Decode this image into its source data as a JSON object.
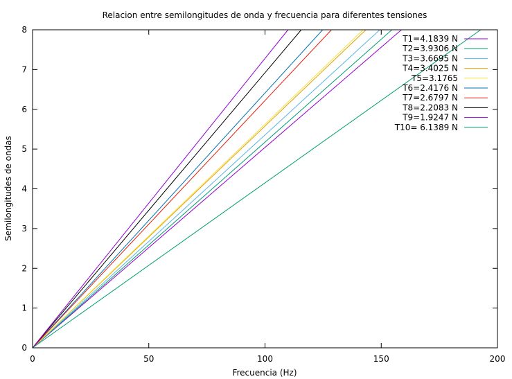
{
  "chart_data": {
    "type": "line",
    "title": "Relacion entre semilongitudes de onda y frecuencia para diferentes tensiones",
    "xlabel": "Frecuencia (Hz)",
    "ylabel": "Semilongitudes de ondas",
    "xlim": [
      0,
      200
    ],
    "ylim": [
      0,
      8
    ],
    "xticks": [
      0,
      50,
      100,
      150,
      200
    ],
    "yticks": [
      0,
      1,
      2,
      3,
      4,
      5,
      6,
      7,
      8
    ],
    "grid": false,
    "legend_position": "top-right",
    "series": [
      {
        "name": "T1=4.1839 N",
        "color": "#9400d3",
        "x": [
          0,
          158.7
        ],
        "y": [
          0,
          8
        ]
      },
      {
        "name": "T2=3.9306 N",
        "color": "#009e73",
        "x": [
          0,
          154.6
        ],
        "y": [
          0,
          8
        ]
      },
      {
        "name": "T3=3.6695 N",
        "color": "#56b4e9",
        "x": [
          0,
          149.4
        ],
        "y": [
          0,
          8
        ]
      },
      {
        "name": "T4=3.4025 N",
        "color": "#e69f00",
        "x": [
          0,
          143.4
        ],
        "y": [
          0,
          8
        ]
      },
      {
        "name": "T5=3.1765",
        "color": "#f0e442",
        "x": [
          0,
          142.2
        ],
        "y": [
          0,
          8
        ]
      },
      {
        "name": "T6=2.4176 N",
        "color": "#0072b2",
        "x": [
          0,
          124.8
        ],
        "y": [
          0,
          8
        ]
      },
      {
        "name": "T7=2.6797 N",
        "color": "#e51e10",
        "x": [
          0,
          128.6
        ],
        "y": [
          0,
          8
        ]
      },
      {
        "name": "T8=2.2083 N",
        "color": "#000000",
        "x": [
          0,
          115.6
        ],
        "y": [
          0,
          8
        ]
      },
      {
        "name": "T9=1.9247 N",
        "color": "#9400d3",
        "x": [
          0,
          109.9
        ],
        "y": [
          0,
          8
        ]
      },
      {
        "name": "T10= 6.1389 N",
        "color": "#009e73",
        "x": [
          0,
          192.8
        ],
        "y": [
          0,
          8
        ]
      }
    ]
  }
}
